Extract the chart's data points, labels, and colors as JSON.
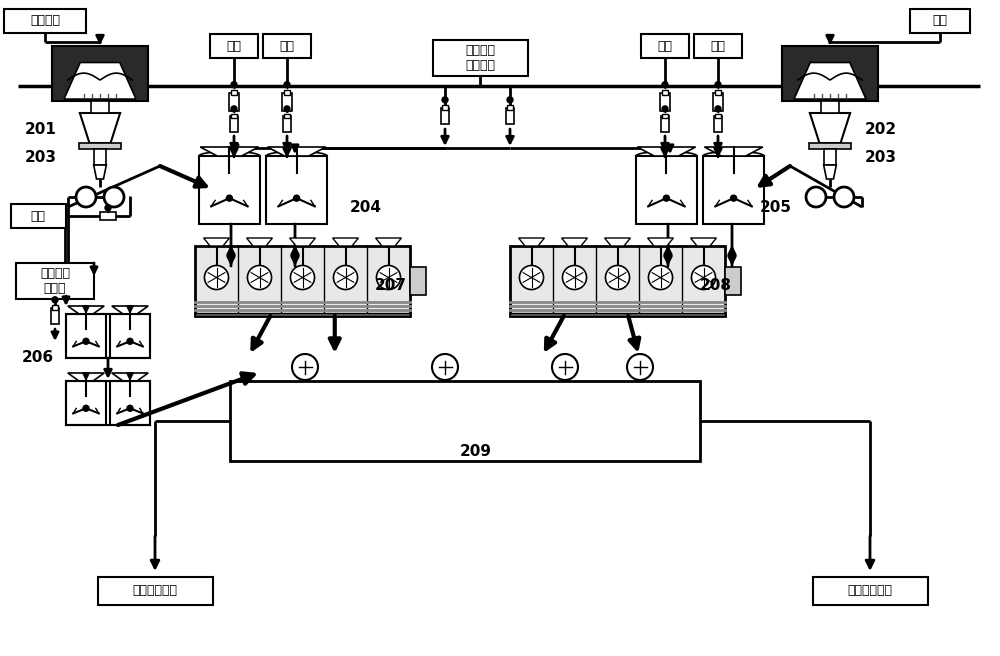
{
  "bg_color": "#ffffff",
  "lc": "#000000",
  "labels": {
    "201": "201",
    "202": "202",
    "203": "203",
    "204": "204",
    "205": "205",
    "206": "206",
    "207": "207",
    "208": "208",
    "209": "209"
  },
  "texts": {
    "fenjingsha": "分级精沙",
    "xisha": "细沙",
    "liusuan": "硫酸",
    "yaoqi": "药剂",
    "huanbao": "自环保水\n处理系统",
    "yaoji_left": "药剂",
    "hansuanchi": "自含酸蚋\n环水池",
    "qujingsha": "去浮选精沙库",
    "quweishan": "去浮选尾沙库"
  },
  "scale": [
    1000,
    656
  ]
}
